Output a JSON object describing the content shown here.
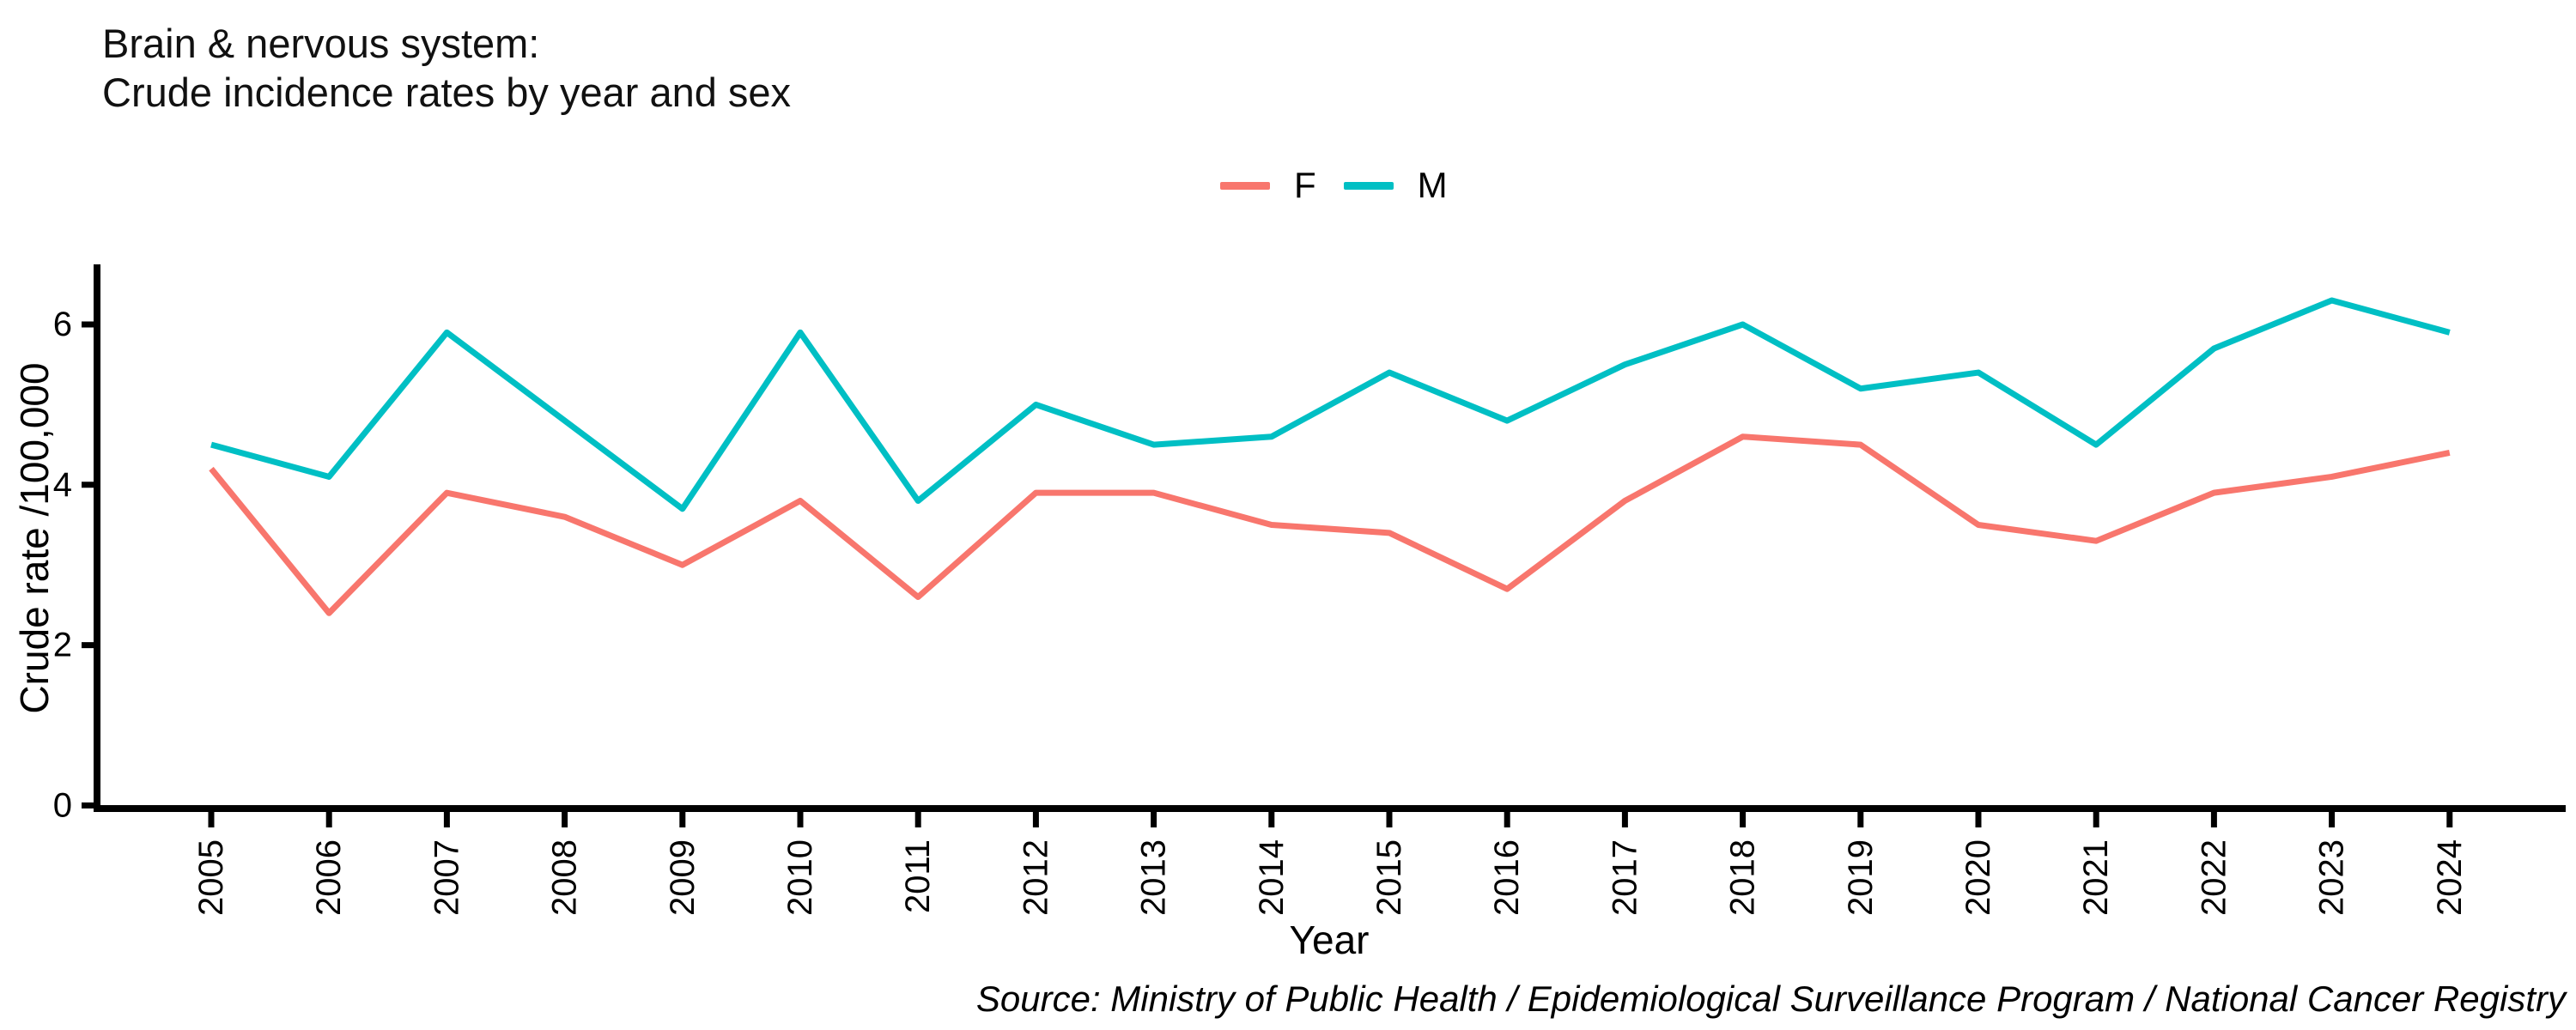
{
  "title": {
    "line1": "Brain & nervous system:",
    "line2": "Crude incidence rates by year and sex"
  },
  "legend": [
    {
      "label": "F",
      "color": "#F8766D"
    },
    {
      "label": "M",
      "color": "#00BFC4"
    }
  ],
  "axes": {
    "y_label": "Crude rate /100,000",
    "x_label": "Year",
    "y_ticks": [
      0,
      2,
      4,
      6
    ]
  },
  "source": "Source: Ministry of Public Health / Epidemiological Surveillance Program / National Cancer Registry",
  "chart_data": {
    "type": "line",
    "title": "Brain & nervous system: Crude incidence rates by year and sex",
    "categories": [
      "2005",
      "2006",
      "2007",
      "2008",
      "2009",
      "2010",
      "2011",
      "2012",
      "2013",
      "2014",
      "2015",
      "2016",
      "2017",
      "2018",
      "2019",
      "2020",
      "2021",
      "2022",
      "2023",
      "2024"
    ],
    "series": [
      {
        "name": "F",
        "color": "#F8766D",
        "values": [
          4.2,
          2.4,
          3.9,
          3.6,
          3.0,
          3.8,
          2.6,
          3.9,
          3.9,
          3.5,
          3.4,
          2.7,
          3.8,
          4.6,
          4.5,
          3.5,
          3.3,
          3.9,
          4.1,
          4.4
        ]
      },
      {
        "name": "M",
        "color": "#00BFC4",
        "values": [
          4.5,
          4.1,
          5.9,
          4.8,
          3.7,
          5.9,
          3.8,
          5.0,
          4.5,
          4.6,
          5.4,
          4.8,
          5.5,
          6.0,
          5.2,
          5.4,
          4.5,
          5.7,
          6.3,
          5.9
        ]
      }
    ],
    "xlabel": "Year",
    "ylabel": "Crude rate /100,000",
    "ylim": [
      0,
      6.75
    ],
    "grid": false,
    "legend_position": "top-center"
  }
}
